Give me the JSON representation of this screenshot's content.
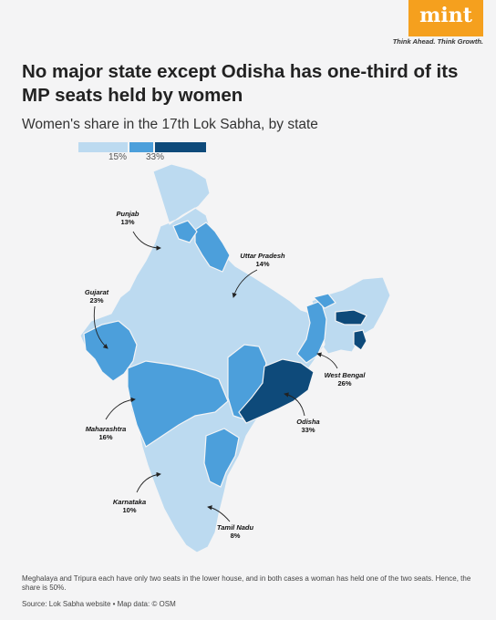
{
  "brand": {
    "logo": "mint",
    "tagline": "Think Ahead. Think Growth."
  },
  "title": "No major state except Odisha has one-third of its MP seats held by women",
  "subtitle": "Women's share in the 17th Lok Sabha, by state",
  "legend": {
    "ticks": [
      "15%",
      "33%"
    ],
    "colors": [
      "#bcdaf0",
      "#4c9fdb",
      "#0e4a7a"
    ]
  },
  "states": [
    {
      "name": "Punjab",
      "value": "13%",
      "color": "#bcdaf0"
    },
    {
      "name": "Uttar Pradesh",
      "value": "14%",
      "color": "#bcdaf0"
    },
    {
      "name": "Gujarat",
      "value": "23%",
      "color": "#4c9fdb"
    },
    {
      "name": "West Bengal",
      "value": "26%",
      "color": "#4c9fdb"
    },
    {
      "name": "Maharashtra",
      "value": "16%",
      "color": "#4c9fdb"
    },
    {
      "name": "Odisha",
      "value": "33%",
      "color": "#0e4a7a"
    },
    {
      "name": "Karnataka",
      "value": "10%",
      "color": "#bcdaf0"
    },
    {
      "name": "Tamil Nadu",
      "value": "8%",
      "color": "#bcdaf0"
    }
  ],
  "colors": {
    "low": "#bcdaf0",
    "mid": "#4c9fdb",
    "high": "#0e4a7a",
    "border": "#f4f4f5"
  },
  "note": "Meghalaya and Tripura each have only two seats in the lower house, and in both cases a woman has held one of the two seats. Hence, the share is 50%.",
  "source": "Source: Lok Sabha website • Map data: © OSM"
}
